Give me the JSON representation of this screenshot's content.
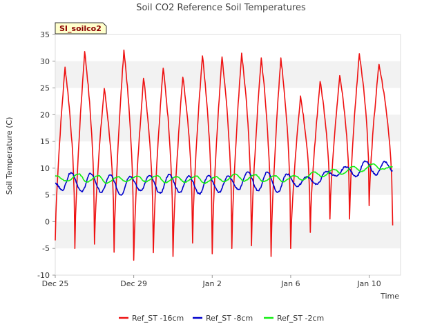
{
  "chart_data": {
    "type": "line",
    "title": "Soil CO2 Reference Soil Temperatures",
    "site_badge": "SI_soilco2",
    "xlabel": "Time",
    "ylabel": "Soil Temperature (C)",
    "x_start": "Dec 25",
    "xlim": [
      0,
      17.6
    ],
    "ylim": [
      -10,
      35
    ],
    "y_ticks": [
      -10,
      -5,
      0,
      5,
      10,
      15,
      20,
      25,
      30,
      35
    ],
    "x_ticks": [
      {
        "label": "Dec 25",
        "day": 0
      },
      {
        "label": "Dec 29",
        "day": 4
      },
      {
        "label": "Jan 2",
        "day": 8
      },
      {
        "label": "Jan 6",
        "day": 12
      },
      {
        "label": "Jan 10",
        "day": 16
      }
    ],
    "shaded_bands": [
      [
        -5,
        0
      ],
      [
        5,
        10
      ],
      [
        15,
        20
      ],
      [
        25,
        30
      ]
    ],
    "legend_position": "bottom",
    "series": [
      {
        "name": "Ref_ST -16cm",
        "color": "#ee1111",
        "peaks": [
          [
            0.5,
            28.9
          ],
          [
            1.5,
            31.8
          ],
          [
            2.5,
            24.9
          ],
          [
            3.5,
            32.1
          ],
          [
            4.5,
            26.8
          ],
          [
            5.5,
            28.7
          ],
          [
            6.5,
            27.0
          ],
          [
            7.5,
            31.0
          ],
          [
            8.5,
            30.8
          ],
          [
            9.5,
            31.5
          ],
          [
            10.5,
            30.6
          ],
          [
            11.5,
            30.6
          ],
          [
            12.5,
            23.5
          ],
          [
            13.5,
            26.2
          ],
          [
            14.5,
            27.3
          ],
          [
            15.5,
            31.4
          ],
          [
            16.5,
            29.4
          ]
        ],
        "troughs": [
          [
            0.0,
            -3.5
          ],
          [
            1.0,
            -5.0
          ],
          [
            2.0,
            -4.2
          ],
          [
            3.0,
            -5.7
          ],
          [
            4.0,
            -7.2
          ],
          [
            5.0,
            -5.8
          ],
          [
            6.0,
            -6.5
          ],
          [
            7.0,
            -4.0
          ],
          [
            8.0,
            -6.0
          ],
          [
            9.0,
            -5.0
          ],
          [
            10.0,
            -4.5
          ],
          [
            11.0,
            -6.5
          ],
          [
            12.0,
            -5.0
          ],
          [
            13.0,
            -2.0
          ],
          [
            14.0,
            0.5
          ],
          [
            15.0,
            0.5
          ],
          [
            16.0,
            3.0
          ],
          [
            17.2,
            -0.7
          ]
        ]
      },
      {
        "name": "Ref_ST -8cm",
        "color": "#0000cc",
        "peaks": [
          [
            0.8,
            9.2
          ],
          [
            1.8,
            9.0
          ],
          [
            2.8,
            8.7
          ],
          [
            3.8,
            8.5
          ],
          [
            4.8,
            8.6
          ],
          [
            5.8,
            8.8
          ],
          [
            6.8,
            8.6
          ],
          [
            7.8,
            8.6
          ],
          [
            8.8,
            8.5
          ],
          [
            9.8,
            9.3
          ],
          [
            10.8,
            9.3
          ],
          [
            11.8,
            8.9
          ],
          [
            12.8,
            8.4
          ],
          [
            13.8,
            9.4
          ],
          [
            14.8,
            10.3
          ],
          [
            15.8,
            11.3
          ],
          [
            16.8,
            11.2
          ]
        ],
        "troughs": [
          [
            0.0,
            7.2
          ],
          [
            0.35,
            5.9
          ],
          [
            1.35,
            5.6
          ],
          [
            2.35,
            5.5
          ],
          [
            3.35,
            5.0
          ],
          [
            4.35,
            5.8
          ],
          [
            5.35,
            5.3
          ],
          [
            6.35,
            5.5
          ],
          [
            7.35,
            5.2
          ],
          [
            8.35,
            5.5
          ],
          [
            9.35,
            6.0
          ],
          [
            10.35,
            5.8
          ],
          [
            11.35,
            5.5
          ],
          [
            12.35,
            6.6
          ],
          [
            13.35,
            7.0
          ],
          [
            14.35,
            8.5
          ],
          [
            15.35,
            8.5
          ],
          [
            16.35,
            8.8
          ],
          [
            17.2,
            9.5
          ]
        ]
      },
      {
        "name": "Ref_ST -2cm",
        "color": "#11ee11",
        "peaks": [
          [
            0.0,
            8.6
          ],
          [
            1.2,
            8.9
          ],
          [
            2.2,
            8.6
          ],
          [
            3.2,
            8.4
          ],
          [
            4.2,
            8.5
          ],
          [
            5.2,
            8.6
          ],
          [
            6.2,
            8.4
          ],
          [
            7.2,
            8.5
          ],
          [
            8.2,
            8.4
          ],
          [
            9.2,
            8.9
          ],
          [
            10.2,
            8.8
          ],
          [
            11.2,
            8.6
          ],
          [
            12.2,
            8.6
          ],
          [
            13.2,
            9.3
          ],
          [
            14.2,
            9.8
          ],
          [
            15.2,
            10.3
          ],
          [
            16.2,
            10.8
          ],
          [
            17.2,
            10.3
          ]
        ],
        "troughs": [
          [
            0.6,
            7.6
          ],
          [
            1.6,
            7.4
          ],
          [
            2.6,
            7.2
          ],
          [
            3.6,
            7.5
          ],
          [
            4.6,
            7.5
          ],
          [
            5.6,
            7.3
          ],
          [
            6.6,
            7.4
          ],
          [
            7.6,
            7.2
          ],
          [
            8.6,
            7.5
          ],
          [
            9.6,
            7.6
          ],
          [
            10.6,
            7.5
          ],
          [
            11.6,
            7.5
          ],
          [
            12.6,
            7.8
          ],
          [
            13.6,
            8.4
          ],
          [
            14.6,
            8.9
          ],
          [
            15.6,
            9.4
          ],
          [
            16.6,
            9.8
          ]
        ]
      }
    ]
  }
}
